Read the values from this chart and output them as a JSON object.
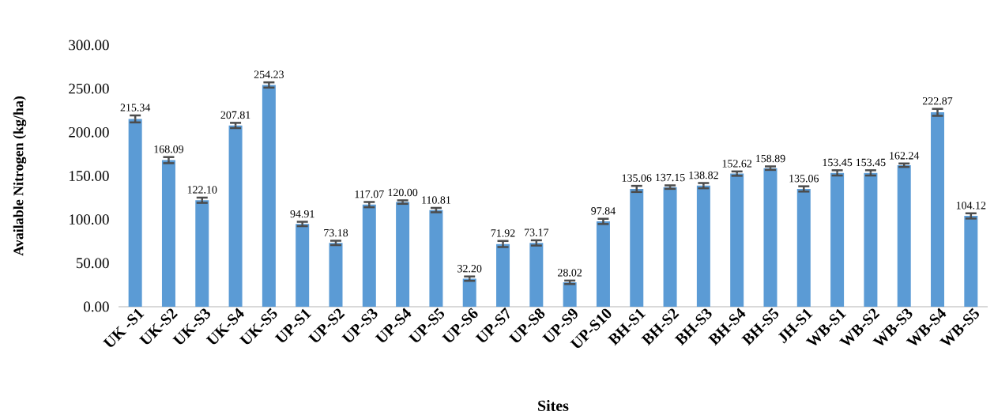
{
  "chart_data": {
    "type": "bar",
    "xlabel": "Sites",
    "ylabel": "Available Nitrogen  (kg/ha)",
    "categories": [
      "UK -S1",
      "UK-S2",
      "UK-S3",
      "UK-S4",
      "UK-S5",
      "UP-S1",
      "UP-S2",
      "UP-S3",
      "UP-S4",
      "UP-S5",
      "UP-S6",
      "UP-S7",
      "UP-S8",
      "UP-S9",
      "UP-S10",
      "BH-S1",
      "BH-S2",
      "BH-S3",
      "BH-S4",
      "BH-S5",
      "JH-S1",
      "WB-S1",
      "WB-S2",
      "WB-S3",
      "WB-S4",
      "WB-S5"
    ],
    "values": [
      215.34,
      168.09,
      122.1,
      207.81,
      254.23,
      94.91,
      73.18,
      117.07,
      120.0,
      110.81,
      32.2,
      71.92,
      73.17,
      28.02,
      97.84,
      135.06,
      137.15,
      138.82,
      152.62,
      158.89,
      135.06,
      153.45,
      153.45,
      162.24,
      222.87,
      104.12
    ],
    "errors": [
      4,
      3.5,
      3,
      3,
      3,
      2.5,
      2.5,
      3,
      2,
      2.5,
      2.5,
      3.5,
      3,
      2,
      3,
      3.5,
      2,
      3,
      2.5,
      2,
      3,
      3,
      3,
      2,
      4,
      3
    ],
    "value_labels": [
      "215.34",
      "168.09",
      "122.10",
      "207.81",
      "254.23",
      "94.91",
      "73.18",
      "117.07",
      "120.00",
      "110.81",
      "32.20",
      "71.92",
      "73.17",
      "28.02",
      "97.84",
      "135.06",
      "137.15",
      "138.82",
      "152.62",
      "158.89",
      "135.06",
      "153.45",
      "153.45",
      "162.24",
      "222.87",
      "104.12"
    ],
    "color": "#5b9bd5",
    "ylim": [
      0,
      300
    ],
    "yticks": [
      {
        "value": 0,
        "label": "0.00"
      },
      {
        "value": 50,
        "label": "50.00"
      },
      {
        "value": 100,
        "label": "100.00"
      },
      {
        "value": 150,
        "label": "150.00"
      },
      {
        "value": 200,
        "label": "200.00"
      },
      {
        "value": 250,
        "label": "250.00"
      },
      {
        "value": 300,
        "label": "300.00"
      }
    ]
  }
}
